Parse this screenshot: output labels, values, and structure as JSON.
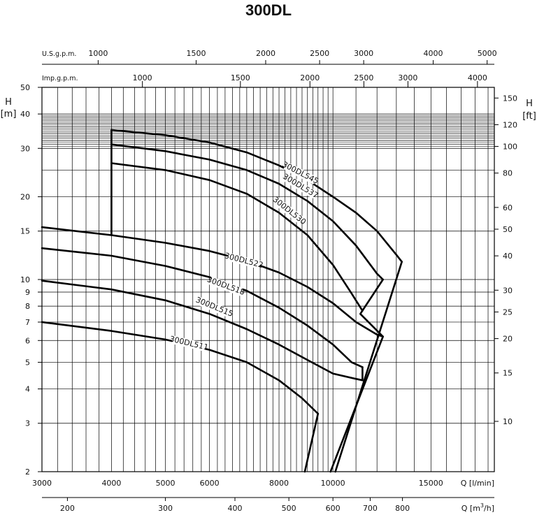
{
  "chart_data": {
    "type": "line",
    "title": "300DL",
    "x_lpm": {
      "label": "Q [l/min]",
      "scale": "log",
      "range": [
        3000,
        19500
      ],
      "ticks": [
        3000,
        4000,
        5000,
        6000,
        8000,
        10000,
        15000
      ],
      "tick_labels": [
        "3000",
        "4000",
        "5000",
        "6000",
        "8000",
        "10000",
        "15000"
      ]
    },
    "x_m3h": {
      "label_prefix": "Q [m",
      "label_sup": "3",
      "label_suffix": "/h]",
      "ticks": [
        200,
        300,
        400,
        500,
        600,
        800
      ],
      "tick_labels": [
        "200",
        "300",
        "400",
        "500",
        "600",
        "700",
        "800"
      ],
      "label_ticks": [
        200,
        300,
        400,
        500,
        600,
        700,
        800
      ]
    },
    "x_usgpm": {
      "label": "U.S.g.p.m.",
      "ticks": [
        1000,
        1500,
        2000,
        2500,
        3000,
        4000,
        5000
      ],
      "tick_labels": [
        "1000",
        "1500",
        "2000",
        "2500",
        "3000",
        "4000",
        "5000"
      ]
    },
    "x_impgpm": {
      "label": "Imp.g.p.m.",
      "ticks": [
        1000,
        1500,
        2000,
        2500,
        3000,
        4000
      ],
      "tick_labels": [
        "1000",
        "1500",
        "2000",
        "2500",
        "3000",
        "4000"
      ]
    },
    "y_m": {
      "label_top": "H",
      "label_unit": "[m]",
      "scale": "log",
      "range": [
        2,
        50
      ],
      "ticks": [
        2,
        3,
        4,
        5,
        6,
        7,
        8,
        9,
        10,
        15,
        20,
        30,
        40,
        50
      ],
      "tick_labels": [
        "2",
        "3",
        "4",
        "5",
        "6",
        "7",
        "8",
        "9",
        "10",
        "15",
        "20",
        "30",
        "40",
        "50"
      ]
    },
    "y_ft": {
      "label_top": "H",
      "label_unit": "[ft]",
      "ticks": [
        10,
        15,
        20,
        25,
        30,
        40,
        50,
        60,
        80,
        100,
        120,
        150
      ],
      "tick_labels": [
        "10",
        "15",
        "20",
        "25",
        "30",
        "40",
        "50",
        "60",
        "80",
        "100",
        "120",
        "150"
      ]
    },
    "grid": true,
    "series": [
      {
        "name": "300DL545",
        "points": [
          [
            4000,
            35
          ],
          [
            5000,
            33.5
          ],
          [
            6000,
            31.5
          ],
          [
            7000,
            29
          ],
          [
            8000,
            26
          ],
          [
            9000,
            23
          ],
          [
            10000,
            20
          ],
          [
            11000,
            17.5
          ],
          [
            12000,
            15
          ],
          [
            13000,
            12.3
          ],
          [
            13300,
            11.6
          ]
        ],
        "label_at": [
          8700,
          24
        ]
      },
      {
        "name": "300DL537",
        "points": [
          [
            4000,
            31
          ],
          [
            5000,
            29.3
          ],
          [
            6000,
            27.3
          ],
          [
            7000,
            25
          ],
          [
            8000,
            22.3
          ],
          [
            9000,
            19.3
          ],
          [
            10000,
            16.3
          ],
          [
            11000,
            13.3
          ],
          [
            12000,
            10.5
          ],
          [
            12300,
            10
          ]
        ],
        "label_at": [
          8700,
          21.5
        ]
      },
      {
        "name": "300DL530",
        "points": [
          [
            4000,
            26.5
          ],
          [
            5000,
            25
          ],
          [
            6000,
            23
          ],
          [
            7000,
            20.5
          ],
          [
            8000,
            17.5
          ],
          [
            9000,
            14.5
          ],
          [
            10000,
            11.3
          ],
          [
            10800,
            8.9
          ],
          [
            11300,
            7.7
          ]
        ],
        "label_at": [
          8300,
          17.5
        ]
      },
      {
        "name": "300DL522",
        "points": [
          [
            3000,
            15.5
          ],
          [
            4000,
            14.5
          ],
          [
            5000,
            13.6
          ],
          [
            6000,
            12.7
          ],
          [
            7000,
            11.7
          ],
          [
            8000,
            10.6
          ],
          [
            9000,
            9.4
          ],
          [
            10000,
            8.2
          ],
          [
            11000,
            7
          ],
          [
            12000,
            6.3
          ],
          [
            12300,
            6.2
          ]
        ],
        "label_at": [
          6900,
          11.5
        ]
      },
      {
        "name": "300DL518",
        "points": [
          [
            3000,
            13
          ],
          [
            4000,
            12.2
          ],
          [
            5000,
            11.2
          ],
          [
            6000,
            10.2
          ],
          [
            7000,
            9.1
          ],
          [
            8000,
            7.9
          ],
          [
            9000,
            6.8
          ],
          [
            10000,
            5.8
          ],
          [
            10800,
            5
          ],
          [
            11300,
            4.8
          ]
        ],
        "label_at": [
          6400,
          9.3
        ]
      },
      {
        "name": "300DL515",
        "points": [
          [
            3000,
            9.9
          ],
          [
            4000,
            9.2
          ],
          [
            5000,
            8.4
          ],
          [
            6000,
            7.5
          ],
          [
            7000,
            6.6
          ],
          [
            8000,
            5.8
          ],
          [
            9000,
            5.1
          ],
          [
            10000,
            4.55
          ],
          [
            11000,
            4.35
          ],
          [
            11300,
            4.3
          ]
        ],
        "label_at": [
          6100,
          7.8
        ]
      },
      {
        "name": "300DL511",
        "points": [
          [
            3000,
            7
          ],
          [
            4000,
            6.5
          ],
          [
            5000,
            6.05
          ],
          [
            6000,
            5.55
          ],
          [
            7000,
            5
          ],
          [
            8000,
            4.3
          ],
          [
            8800,
            3.7
          ],
          [
            9400,
            3.25
          ]
        ],
        "label_at": [
          5500,
          5.75
        ]
      }
    ],
    "boundary_lines": [
      {
        "points": [
          [
            4000,
            14.5
          ],
          [
            4000,
            35
          ]
        ]
      },
      {
        "points": [
          [
            9400,
            3.25
          ],
          [
            8900,
            2
          ]
        ]
      },
      {
        "points": [
          [
            13300,
            11.6
          ],
          [
            10100,
            2
          ]
        ]
      },
      {
        "points": [
          [
            12300,
            10
          ],
          [
            11200,
            7.5
          ],
          [
            12300,
            6.2
          ],
          [
            9900,
            2
          ]
        ]
      },
      {
        "points": [
          [
            11300,
            4.3
          ],
          [
            11300,
            4.8
          ]
        ]
      }
    ]
  }
}
